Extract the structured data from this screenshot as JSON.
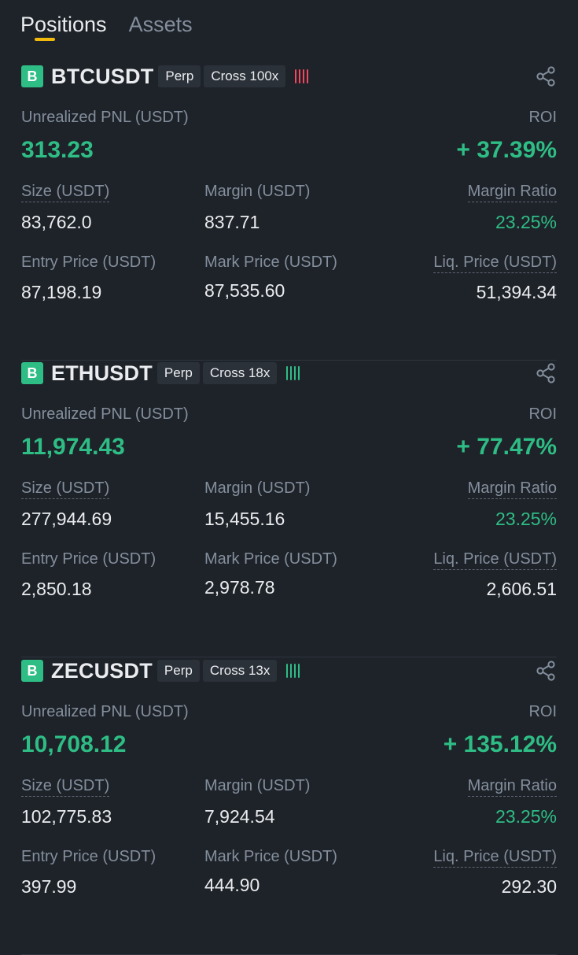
{
  "tabs": [
    {
      "label": "Positions",
      "active": true
    },
    {
      "label": "Assets",
      "active": false
    }
  ],
  "labels": {
    "unrealized_pnl": "Unrealized PNL (USDT)",
    "roi": "ROI",
    "size": "Size (USDT)",
    "margin": "Margin (USDT)",
    "margin_ratio": "Margin Ratio",
    "entry_price": "Entry Price (USDT)",
    "mark_price": "Mark Price (USDT)",
    "liq_price": "Liq. Price (USDT)"
  },
  "colors": {
    "accent_yellow": "#f0b90b",
    "profit_green": "#2ebd85",
    "risk_red": "#f6465d",
    "background": "#1e2329"
  },
  "positions": [
    {
      "side_badge": "B",
      "symbol": "BTCUSDT",
      "type_tag": "Perp",
      "margin_tag": "Cross 100x",
      "risk_indicator": {
        "bars": 4,
        "color": "#f6465d"
      },
      "share_icon": "share-icon",
      "unrealized_pnl": "313.23",
      "roi": "+ 37.39%",
      "size": "83,762.0",
      "margin": "837.71",
      "margin_ratio": "23.25%",
      "entry_price": "87,198.19",
      "mark_price": "87,535.60",
      "liq_price": "51,394.34"
    },
    {
      "side_badge": "B",
      "symbol": "ETHUSDT",
      "type_tag": "Perp",
      "margin_tag": "Cross 18x",
      "risk_indicator": {
        "bars": 4,
        "color": "#2ebd85"
      },
      "share_icon": "share-icon",
      "unrealized_pnl": "11,974.43",
      "roi": "+ 77.47%",
      "size": "277,944.69",
      "margin": "15,455.16",
      "margin_ratio": "23.25%",
      "entry_price": "2,850.18",
      "mark_price": "2,978.78",
      "liq_price": "2,606.51"
    },
    {
      "side_badge": "B",
      "symbol": "ZECUSDT",
      "type_tag": "Perp",
      "margin_tag": "Cross 13x",
      "risk_indicator": {
        "bars": 4,
        "color": "#2ebd85"
      },
      "share_icon": "share-icon",
      "unrealized_pnl": "10,708.12",
      "roi": "+ 135.12%",
      "size": "102,775.83",
      "margin": "7,924.54",
      "margin_ratio": "23.25%",
      "entry_price": "397.99",
      "mark_price": "444.90",
      "liq_price": "292.30"
    }
  ]
}
